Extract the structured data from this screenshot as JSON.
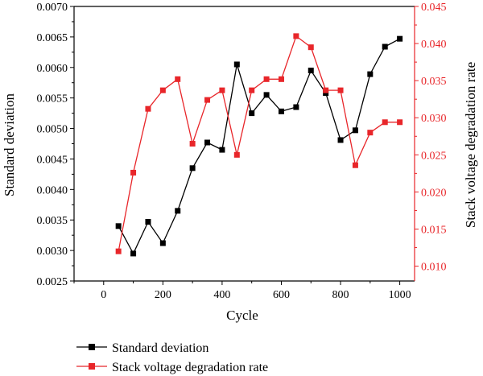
{
  "chart_data": {
    "type": "line",
    "xlabel": "Cycle",
    "x_ticks": [
      "0",
      "200",
      "400",
      "600",
      "800",
      "1000"
    ],
    "x_tick_values": [
      0,
      200,
      400,
      600,
      800,
      1000
    ],
    "xlim": [
      -100,
      1050
    ],
    "ylabel_left": "Standard deviation",
    "ylim_left": [
      0.0025,
      0.007
    ],
    "y_ticks_left": [
      "0.0025",
      "0.0030",
      "0.0035",
      "0.0040",
      "0.0045",
      "0.0050",
      "0.0055",
      "0.0060",
      "0.0065",
      "0.0070"
    ],
    "y_tick_values_left": [
      0.0025,
      0.003,
      0.0035,
      0.004,
      0.0045,
      0.005,
      0.0055,
      0.006,
      0.0065,
      0.007
    ],
    "ylabel_right": "Stack voltage degradation rate",
    "ylim_right": [
      0.008,
      0.045
    ],
    "y_ticks_right": [
      "0.010",
      "0.015",
      "0.020",
      "0.025",
      "0.030",
      "0.035",
      "0.040",
      "0.045"
    ],
    "y_tick_values_right": [
      0.01,
      0.015,
      0.02,
      0.025,
      0.03,
      0.035,
      0.04,
      0.045
    ],
    "grid": false,
    "legend_position": "bottom",
    "series": [
      {
        "name": "Standard deviation",
        "axis": "left",
        "color": "#000000",
        "marker": "square",
        "x": [
          50,
          100,
          150,
          200,
          250,
          300,
          350,
          400,
          450,
          500,
          550,
          600,
          650,
          700,
          750,
          800,
          850,
          900,
          950,
          1000
        ],
        "values": [
          0.0034,
          0.00295,
          0.00347,
          0.00312,
          0.00365,
          0.00435,
          0.00477,
          0.00465,
          0.00605,
          0.00525,
          0.00555,
          0.00528,
          0.00535,
          0.00595,
          0.00558,
          0.00481,
          0.00497,
          0.00589,
          0.00634,
          0.00647
        ]
      },
      {
        "name": "Stack voltage degradation rate",
        "axis": "right",
        "color": "#e8262a",
        "marker": "square",
        "x": [
          50,
          100,
          150,
          200,
          250,
          300,
          350,
          400,
          450,
          500,
          550,
          600,
          650,
          700,
          750,
          800,
          850,
          900,
          950,
          1000
        ],
        "values": [
          0.012,
          0.0226,
          0.0312,
          0.0337,
          0.0352,
          0.0265,
          0.0324,
          0.0337,
          0.025,
          0.0337,
          0.0352,
          0.0352,
          0.041,
          0.0395,
          0.0337,
          0.0337,
          0.0236,
          0.028,
          0.0294,
          0.0294
        ]
      }
    ]
  }
}
